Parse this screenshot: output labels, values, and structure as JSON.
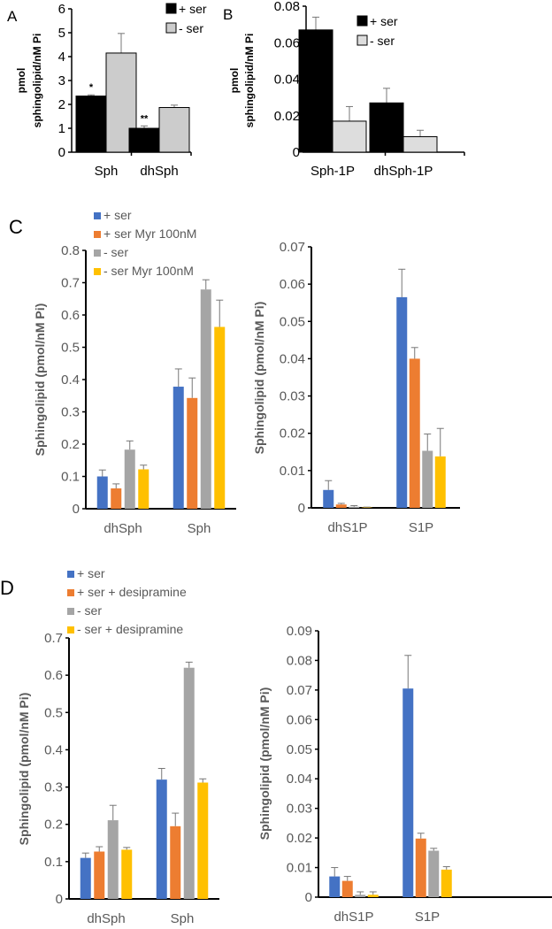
{
  "panel_labels": [
    "A",
    "B",
    "C",
    "D"
  ],
  "colors": {
    "black": "#000000",
    "lightgray": "#d0d0d0",
    "blue": "#4472C4",
    "orange": "#ED7D31",
    "gray": "#A5A5A5",
    "yellow": "#FFC000"
  },
  "chart_data": [
    {
      "panel": "A",
      "type": "bar",
      "title": "",
      "xlabel": "",
      "ylabel": [
        "pmol",
        "sphingolipid/nM Pi"
      ],
      "ylim": [
        0,
        6
      ],
      "yticks": [
        "0",
        "1",
        "2",
        "3",
        "4",
        "5",
        "6"
      ],
      "categories": [
        "Sph",
        "dhSph"
      ],
      "legend_position": "top-right",
      "series": [
        {
          "name": "+ ser",
          "color": "#000000",
          "values": [
            2.35,
            1.0
          ],
          "errors": [
            0.05,
            0.1
          ],
          "annotations": [
            "*",
            "**"
          ]
        },
        {
          "name": "- ser",
          "color": "#cccccc",
          "values": [
            4.15,
            1.87
          ],
          "errors": [
            0.82,
            0.1
          ],
          "annotations": [
            "",
            ""
          ]
        }
      ]
    },
    {
      "panel": "B",
      "type": "bar",
      "title": "",
      "xlabel": "",
      "ylabel": [
        "pmol",
        "sphingolipid/nM Pi"
      ],
      "ylim": [
        0,
        0.08
      ],
      "yticks": [
        "0",
        "0.02",
        "0.04",
        "0.06",
        "0.08"
      ],
      "categories": [
        "Sph-1P",
        "dhSph-1P"
      ],
      "legend_position": "top-right",
      "series": [
        {
          "name": "+ ser",
          "color": "#000000",
          "values": [
            0.067,
            0.027
          ],
          "errors": [
            0.007,
            0.008
          ]
        },
        {
          "name": "- ser",
          "color": "#dddddd",
          "values": [
            0.017,
            0.0085
          ],
          "errors": [
            0.008,
            0.0035
          ]
        }
      ]
    },
    {
      "panel": "C",
      "type": "bar",
      "title": "",
      "xlabel": "",
      "ylabel": [
        "Sphingolipid (pmol/nM Pi)"
      ],
      "ylim": [
        0,
        0.8
      ],
      "yticks": [
        "0",
        "0.1",
        "0.2",
        "0.3",
        "0.4",
        "0.5",
        "0.6",
        "0.7",
        "0.8"
      ],
      "categories": [
        "dhSph",
        "Sph"
      ],
      "legend_position": "top-left",
      "series": [
        {
          "name": "+ ser",
          "color": "#4472C4",
          "values": [
            0.1,
            0.378
          ],
          "errors": [
            0.02,
            0.055
          ]
        },
        {
          "name": "+ ser Myr 100nM",
          "color": "#ED7D31",
          "values": [
            0.063,
            0.343
          ],
          "errors": [
            0.014,
            0.062
          ]
        },
        {
          "name": "- ser",
          "color": "#A5A5A5",
          "values": [
            0.183,
            0.679
          ],
          "errors": [
            0.027,
            0.03
          ]
        },
        {
          "name": "- ser Myr 100nM",
          "color": "#FFC000",
          "values": [
            0.122,
            0.563
          ],
          "errors": [
            0.013,
            0.083
          ]
        }
      ]
    },
    {
      "panel": "C",
      "type": "bar",
      "title": "",
      "xlabel": "",
      "ylabel": [
        "Sphingolipid (pmol/nM Pi)"
      ],
      "ylim": [
        0,
        0.07
      ],
      "yticks": [
        "0",
        "0.01",
        "0.02",
        "0.03",
        "0.04",
        "0.05",
        "0.06",
        "0.07"
      ],
      "categories": [
        "dhS1P",
        "S1P"
      ],
      "series": [
        {
          "name": "+ ser",
          "color": "#4472C4",
          "values": [
            0.0048,
            0.0565
          ],
          "errors": [
            0.0025,
            0.0075
          ]
        },
        {
          "name": "+ ser Myr 100nM",
          "color": "#ED7D31",
          "values": [
            0.0009,
            0.04
          ],
          "errors": [
            0.0003,
            0.003
          ]
        },
        {
          "name": "- ser",
          "color": "#A5A5A5",
          "values": [
            0.0003,
            0.0153
          ],
          "errors": [
            0.0003,
            0.0045
          ]
        },
        {
          "name": "- ser Myr 100nM",
          "color": "#FFC000",
          "values": [
            0.0001,
            0.0138
          ],
          "errors": [
            0.0001,
            0.0075
          ]
        }
      ]
    },
    {
      "panel": "D",
      "type": "bar",
      "title": "",
      "xlabel": "",
      "ylabel": [
        "Sphingolipid (pmol/nM Pi)"
      ],
      "ylim": [
        0,
        0.7
      ],
      "yticks": [
        "0",
        "0.1",
        "0.2",
        "0.3",
        "0.4",
        "0.5",
        "0.6",
        "0.7"
      ],
      "categories": [
        "dhSph",
        "Sph"
      ],
      "legend_position": "top-left",
      "series": [
        {
          "name": "+ ser",
          "color": "#4472C4",
          "values": [
            0.11,
            0.32
          ],
          "errors": [
            0.013,
            0.03
          ]
        },
        {
          "name": "+ ser + desipramine",
          "color": "#ED7D31",
          "values": [
            0.127,
            0.195
          ],
          "errors": [
            0.013,
            0.035
          ]
        },
        {
          "name": "- ser",
          "color": "#A5A5A5",
          "values": [
            0.211,
            0.62
          ],
          "errors": [
            0.04,
            0.015
          ]
        },
        {
          "name": "- ser + desipramine",
          "color": "#FFC000",
          "values": [
            0.132,
            0.312
          ],
          "errors": [
            0.006,
            0.01
          ]
        }
      ]
    },
    {
      "panel": "D",
      "type": "bar",
      "title": "",
      "xlabel": "",
      "ylabel": [
        "Sphingolipid (pmol/nM Pi)"
      ],
      "ylim": [
        0,
        0.09
      ],
      "yticks": [
        "0",
        "0.01",
        "0.02",
        "0.03",
        "0.04",
        "0.05",
        "0.06",
        "0.07",
        "0.08",
        "0.09"
      ],
      "categories": [
        "dhS1P",
        "S1P"
      ],
      "series": [
        {
          "name": "+ ser",
          "color": "#4472C4",
          "values": [
            0.007,
            0.0705
          ],
          "errors": [
            0.003,
            0.0112
          ]
        },
        {
          "name": "+ ser + desipramine",
          "color": "#ED7D31",
          "values": [
            0.0055,
            0.0198
          ],
          "errors": [
            0.0015,
            0.0018
          ]
        },
        {
          "name": "- ser",
          "color": "#A5A5A5",
          "values": [
            0.0008,
            0.0157
          ],
          "errors": [
            0.001,
            0.0008
          ]
        },
        {
          "name": "- ser + desipramine",
          "color": "#FFC000",
          "values": [
            0.0008,
            0.0093
          ],
          "errors": [
            0.001,
            0.001
          ]
        }
      ]
    }
  ]
}
